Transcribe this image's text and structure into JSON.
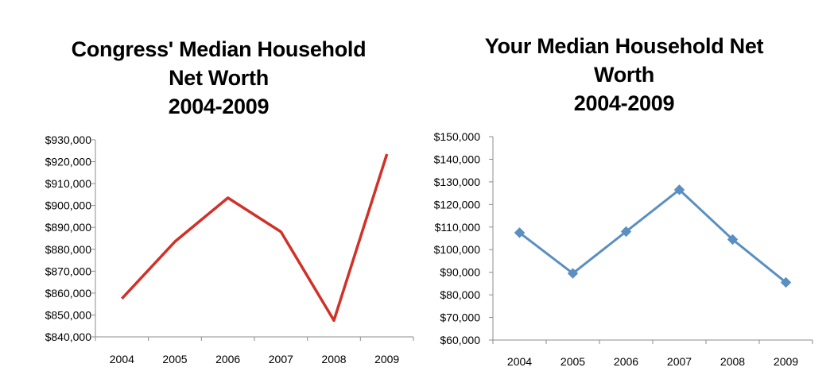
{
  "charts_meta": [
    {
      "title_lines": [
        "Congress' Median Household",
        "Net Worth",
        "2004-2009"
      ]
    },
    {
      "title_lines": [
        "Your Median Household Net",
        "Worth",
        "2004-2009"
      ]
    }
  ],
  "chart_data": [
    {
      "type": "line",
      "title": "Congress' Median Household Net Worth 2004-2009",
      "categories": [
        "2004",
        "2005",
        "2006",
        "2007",
        "2008",
        "2009"
      ],
      "series": [
        {
          "values": [
            857500,
            883500,
            903500,
            888000,
            847500,
            923500
          ],
          "color": "#d03128",
          "markers": false
        }
      ],
      "ylim": [
        840000,
        930000
      ],
      "yticks": [
        840000,
        850000,
        860000,
        870000,
        880000,
        890000,
        900000,
        910000,
        920000,
        930000
      ],
      "ytick_labels": [
        "$840,000",
        "$850,000",
        "$860,000",
        "$870,000",
        "$880,000",
        "$890,000",
        "$900,000",
        "$910,000",
        "$920,000",
        "$930,000"
      ],
      "grid": false
    },
    {
      "type": "line",
      "title": "Your Median Household Net Worth 2004-2009",
      "categories": [
        "2004",
        "2005",
        "2006",
        "2007",
        "2008",
        "2009"
      ],
      "series": [
        {
          "values": [
            107500,
            89500,
            108000,
            126500,
            104500,
            85500
          ],
          "color": "#5b8fc2",
          "markers": true,
          "marker": "diamond"
        }
      ],
      "ylim": [
        60000,
        150000
      ],
      "yticks": [
        60000,
        70000,
        80000,
        90000,
        100000,
        110000,
        120000,
        130000,
        140000,
        150000
      ],
      "ytick_labels": [
        "$60,000",
        "$70,000",
        "$80,000",
        "$90,000",
        "$100,000",
        "$110,000",
        "$120,000",
        "$130,000",
        "$140,000",
        "$150,000"
      ],
      "grid": false
    }
  ]
}
